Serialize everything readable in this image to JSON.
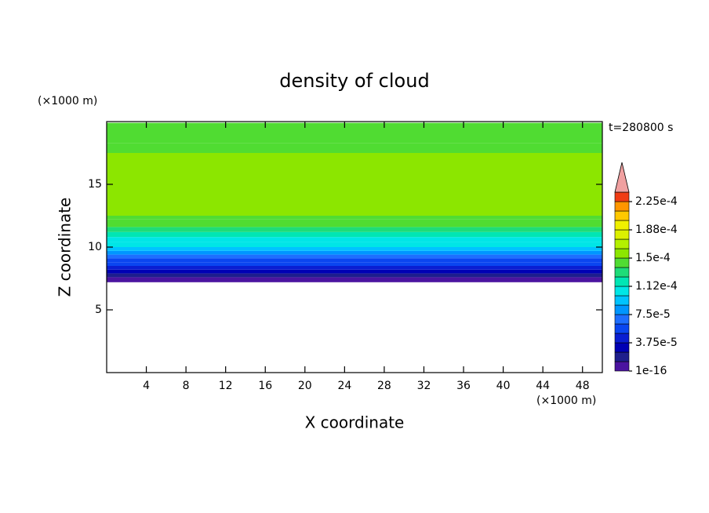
{
  "chart_data": {
    "type": "contour",
    "title": "density of cloud",
    "x_label": "X coordinate",
    "y_label": "Z coordinate",
    "x_unit": "(×1000 m)",
    "y_unit": "(×1000 m)",
    "time_label": "t=280800 s",
    "xlim": [
      0,
      50
    ],
    "xticks": [
      4,
      8,
      12,
      16,
      20,
      24,
      28,
      32,
      36,
      40,
      44,
      48
    ],
    "ylim": [
      0,
      20
    ],
    "yticks": [
      5,
      10,
      15
    ],
    "z_edges": [
      7.2,
      7.6,
      7.9,
      8.2,
      8.5,
      8.8,
      9.1,
      9.4,
      9.7,
      10.0,
      10.4,
      10.8,
      11.2,
      11.6,
      12.2,
      12.5,
      17.5,
      18.3,
      19.9
    ],
    "values": [
      5e-06,
      2e-05,
      3e-05,
      4e-05,
      5e-05,
      6e-05,
      7e-05,
      8e-05,
      9e-05,
      0.0001,
      0.00011,
      0.00012,
      0.00013,
      0.00014,
      0.000145,
      0.000155,
      0.000145,
      0.00014
    ],
    "levels": [
      1e-16,
      1.25e-05,
      2.5e-05,
      3.75e-05,
      5e-05,
      6.25e-05,
      7.5e-05,
      8.75e-05,
      0.0001,
      0.0001125,
      0.000125,
      0.0001375,
      0.00015,
      0.0001625,
      0.000175,
      0.0001875,
      0.0002,
      0.0002125,
      0.000225,
      0.0002375
    ],
    "colors": [
      "#4b14a0",
      "#1e1e8c",
      "#0000b4",
      "#0a1ed2",
      "#0a46f0",
      "#1e6eff",
      "#0096ff",
      "#00c3ff",
      "#00e6e6",
      "#00e6b4",
      "#1edc78",
      "#50dc32",
      "#8ce600",
      "#b4f000",
      "#dcf000",
      "#f0f000",
      "#ffc800",
      "#ff9600",
      "#f03c14"
    ],
    "extend_color": "#f0a0a0",
    "cticks": [
      1e-16,
      {
        "value": 3.75e-05,
        "label": "3.75e-5"
      },
      {
        "value": 7.5e-05,
        "label": "7.5e-5"
      },
      {
        "value": 0.0001125,
        "label": "1.12e-4"
      },
      {
        "value": 0.00015,
        "label": "1.5e-4"
      },
      {
        "value": 0.0001875,
        "label": "1.88e-4"
      },
      {
        "value": 0.000225,
        "label": "2.25e-4"
      }
    ]
  }
}
